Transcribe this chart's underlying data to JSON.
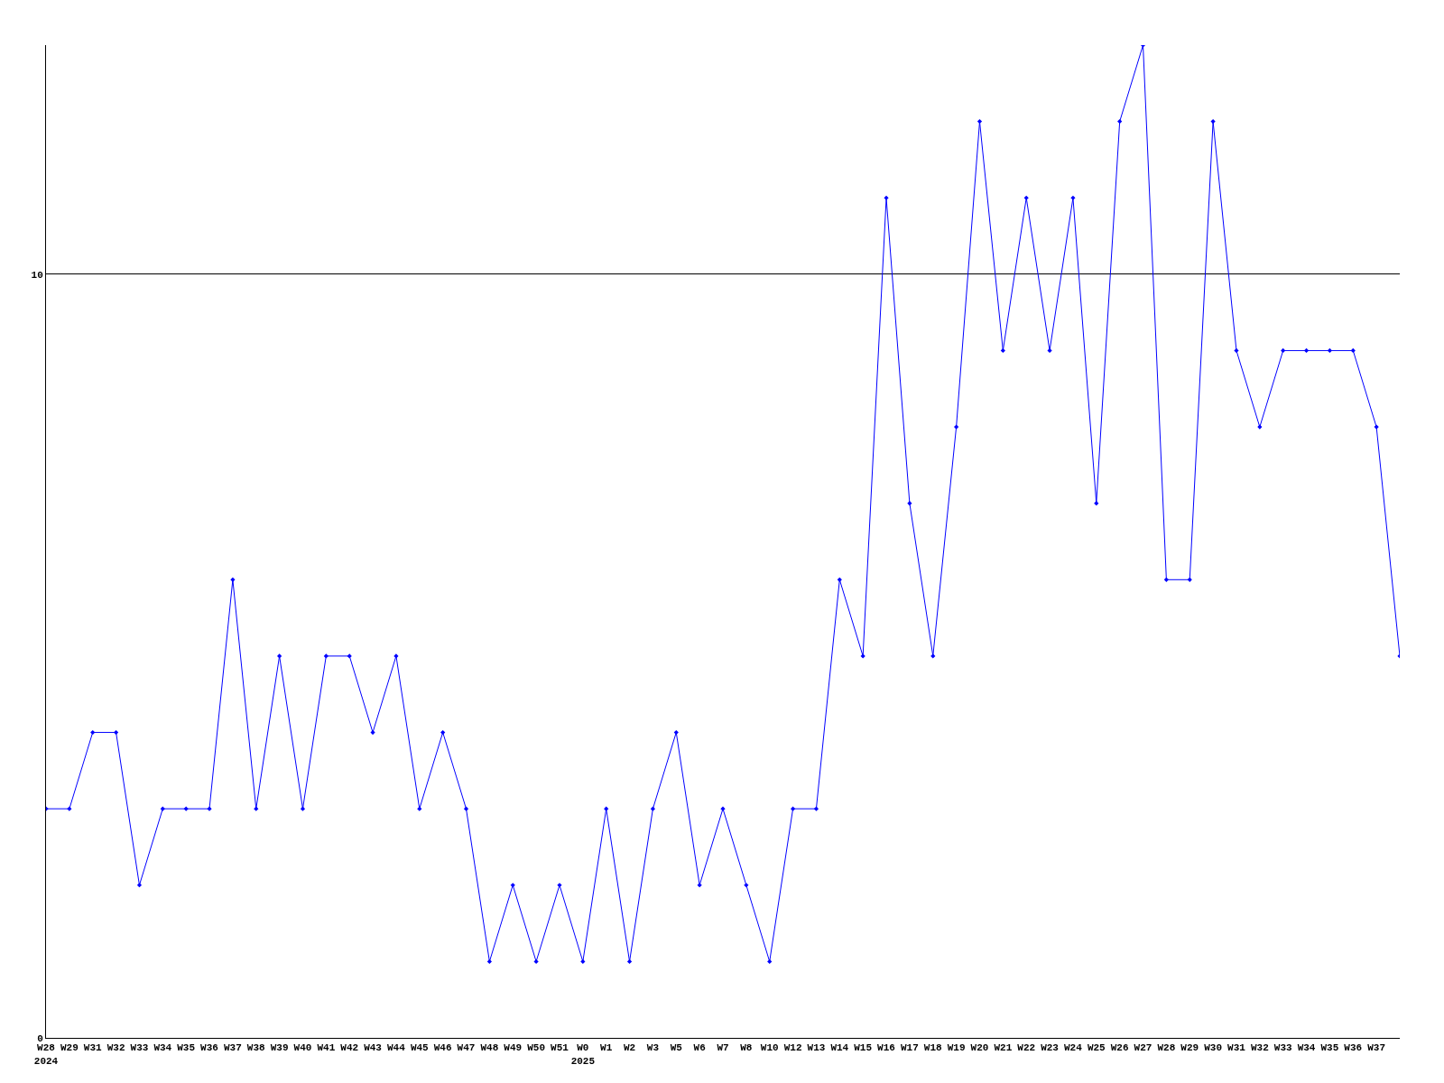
{
  "chart_data": {
    "type": "line",
    "categories": [
      "W28\n2024",
      "W29",
      "W31",
      "W32",
      "W33",
      "W34",
      "W35",
      "W36",
      "W37",
      "W38",
      "W39",
      "W40",
      "W41",
      "W42",
      "W43",
      "W44",
      "W45",
      "W46",
      "W47",
      "W48",
      "W49",
      "W50",
      "W51",
      "W0\n2025",
      "W1",
      "W2",
      "W3",
      "W5",
      "W6",
      "W7",
      "W8",
      "W10",
      "W12",
      "W13",
      "W14",
      "W15",
      "W16",
      "W17",
      "W18",
      "W19",
      "W20",
      "W21",
      "W22",
      "W23",
      "W24",
      "W25",
      "W26",
      "W27",
      "W28",
      "W29",
      "W30",
      "W31",
      "W32",
      "W33",
      "W34",
      "W35",
      "W36",
      "W37",
      null
    ],
    "series": [
      {
        "color": "#0000ff",
        "values": [
          3,
          3,
          4,
          4,
          2,
          3,
          3,
          3,
          6,
          3,
          5,
          3,
          5,
          5,
          4,
          5,
          3,
          4,
          3,
          1,
          2,
          1,
          2,
          1,
          3,
          1,
          3,
          4,
          2,
          3,
          2,
          1,
          3,
          3,
          6,
          5,
          11,
          7,
          5,
          8,
          12,
          9,
          11,
          9,
          11,
          7,
          12,
          13,
          6,
          6,
          12,
          9,
          8,
          9,
          9,
          9,
          9,
          8,
          5
        ]
      }
    ],
    "ylim": [
      0,
      13
    ],
    "yticks": [
      0,
      10
    ],
    "grid": "y",
    "marker": "diamond",
    "line_style": "solid"
  }
}
